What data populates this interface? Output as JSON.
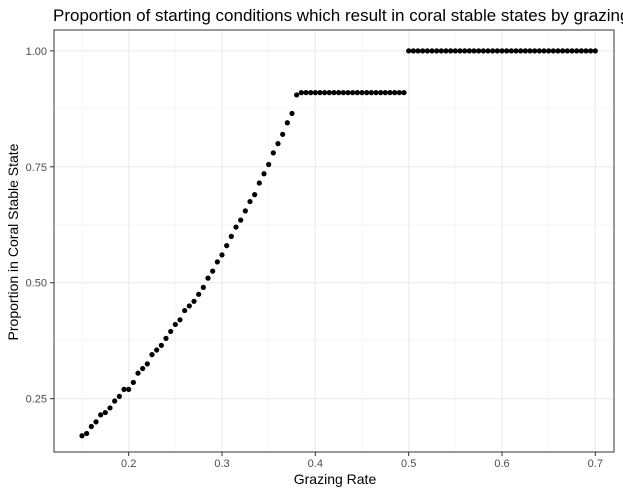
{
  "chart_data": {
    "type": "scatter",
    "title": "Proportion of starting conditions which result in coral stable states by grazing rate",
    "xlabel": "Grazing Rate",
    "ylabel": "Proportion in Coral Stable State",
    "xlim": [
      0.12,
      0.72
    ],
    "ylim": [
      0.135,
      1.045
    ],
    "x_ticks": [
      0.2,
      0.3,
      0.4,
      0.5,
      0.6,
      0.7
    ],
    "x_tick_labels": [
      "0.2",
      "0.3",
      "0.4",
      "0.5",
      "0.6",
      "0.7"
    ],
    "y_ticks": [
      0.25,
      0.5,
      0.75,
      1.0
    ],
    "y_tick_labels": [
      "0.25",
      "0.50",
      "0.75",
      "1.00"
    ],
    "grid": true,
    "point_color": "#000000",
    "x": [
      0.15,
      0.155,
      0.16,
      0.165,
      0.17,
      0.175,
      0.18,
      0.185,
      0.19,
      0.195,
      0.2,
      0.205,
      0.21,
      0.215,
      0.22,
      0.225,
      0.23,
      0.235,
      0.24,
      0.245,
      0.25,
      0.255,
      0.26,
      0.265,
      0.27,
      0.275,
      0.28,
      0.285,
      0.29,
      0.295,
      0.3,
      0.305,
      0.31,
      0.315,
      0.32,
      0.325,
      0.33,
      0.335,
      0.34,
      0.345,
      0.35,
      0.355,
      0.36,
      0.365,
      0.37,
      0.375,
      0.38,
      0.385,
      0.39,
      0.395,
      0.4,
      0.405,
      0.41,
      0.415,
      0.42,
      0.425,
      0.43,
      0.435,
      0.44,
      0.445,
      0.45,
      0.455,
      0.46,
      0.465,
      0.47,
      0.475,
      0.48,
      0.485,
      0.49,
      0.495,
      0.5,
      0.505,
      0.51,
      0.515,
      0.52,
      0.525,
      0.53,
      0.535,
      0.54,
      0.545,
      0.55,
      0.555,
      0.56,
      0.565,
      0.57,
      0.575,
      0.58,
      0.585,
      0.59,
      0.595,
      0.6,
      0.605,
      0.61,
      0.615,
      0.62,
      0.625,
      0.63,
      0.635,
      0.64,
      0.645,
      0.65,
      0.655,
      0.66,
      0.665,
      0.67,
      0.675,
      0.68,
      0.685,
      0.69,
      0.695,
      0.7
    ],
    "y": [
      0.17,
      0.175,
      0.19,
      0.2,
      0.215,
      0.22,
      0.23,
      0.245,
      0.255,
      0.27,
      0.27,
      0.285,
      0.305,
      0.315,
      0.325,
      0.345,
      0.355,
      0.365,
      0.38,
      0.395,
      0.41,
      0.42,
      0.44,
      0.45,
      0.46,
      0.475,
      0.49,
      0.51,
      0.525,
      0.545,
      0.56,
      0.58,
      0.6,
      0.62,
      0.635,
      0.655,
      0.675,
      0.69,
      0.715,
      0.735,
      0.755,
      0.78,
      0.8,
      0.82,
      0.845,
      0.865,
      0.905,
      0.91,
      0.91,
      0.91,
      0.91,
      0.91,
      0.91,
      0.91,
      0.91,
      0.91,
      0.91,
      0.91,
      0.91,
      0.91,
      0.91,
      0.91,
      0.91,
      0.91,
      0.91,
      0.91,
      0.91,
      0.91,
      0.91,
      0.91,
      1.0,
      1.0,
      1.0,
      1.0,
      1.0,
      1.0,
      1.0,
      1.0,
      1.0,
      1.0,
      1.0,
      1.0,
      1.0,
      1.0,
      1.0,
      1.0,
      1.0,
      1.0,
      1.0,
      1.0,
      1.0,
      1.0,
      1.0,
      1.0,
      1.0,
      1.0,
      1.0,
      1.0,
      1.0,
      1.0,
      1.0,
      1.0,
      1.0,
      1.0,
      1.0,
      1.0,
      1.0,
      1.0,
      1.0,
      1.0,
      1.0
    ]
  }
}
